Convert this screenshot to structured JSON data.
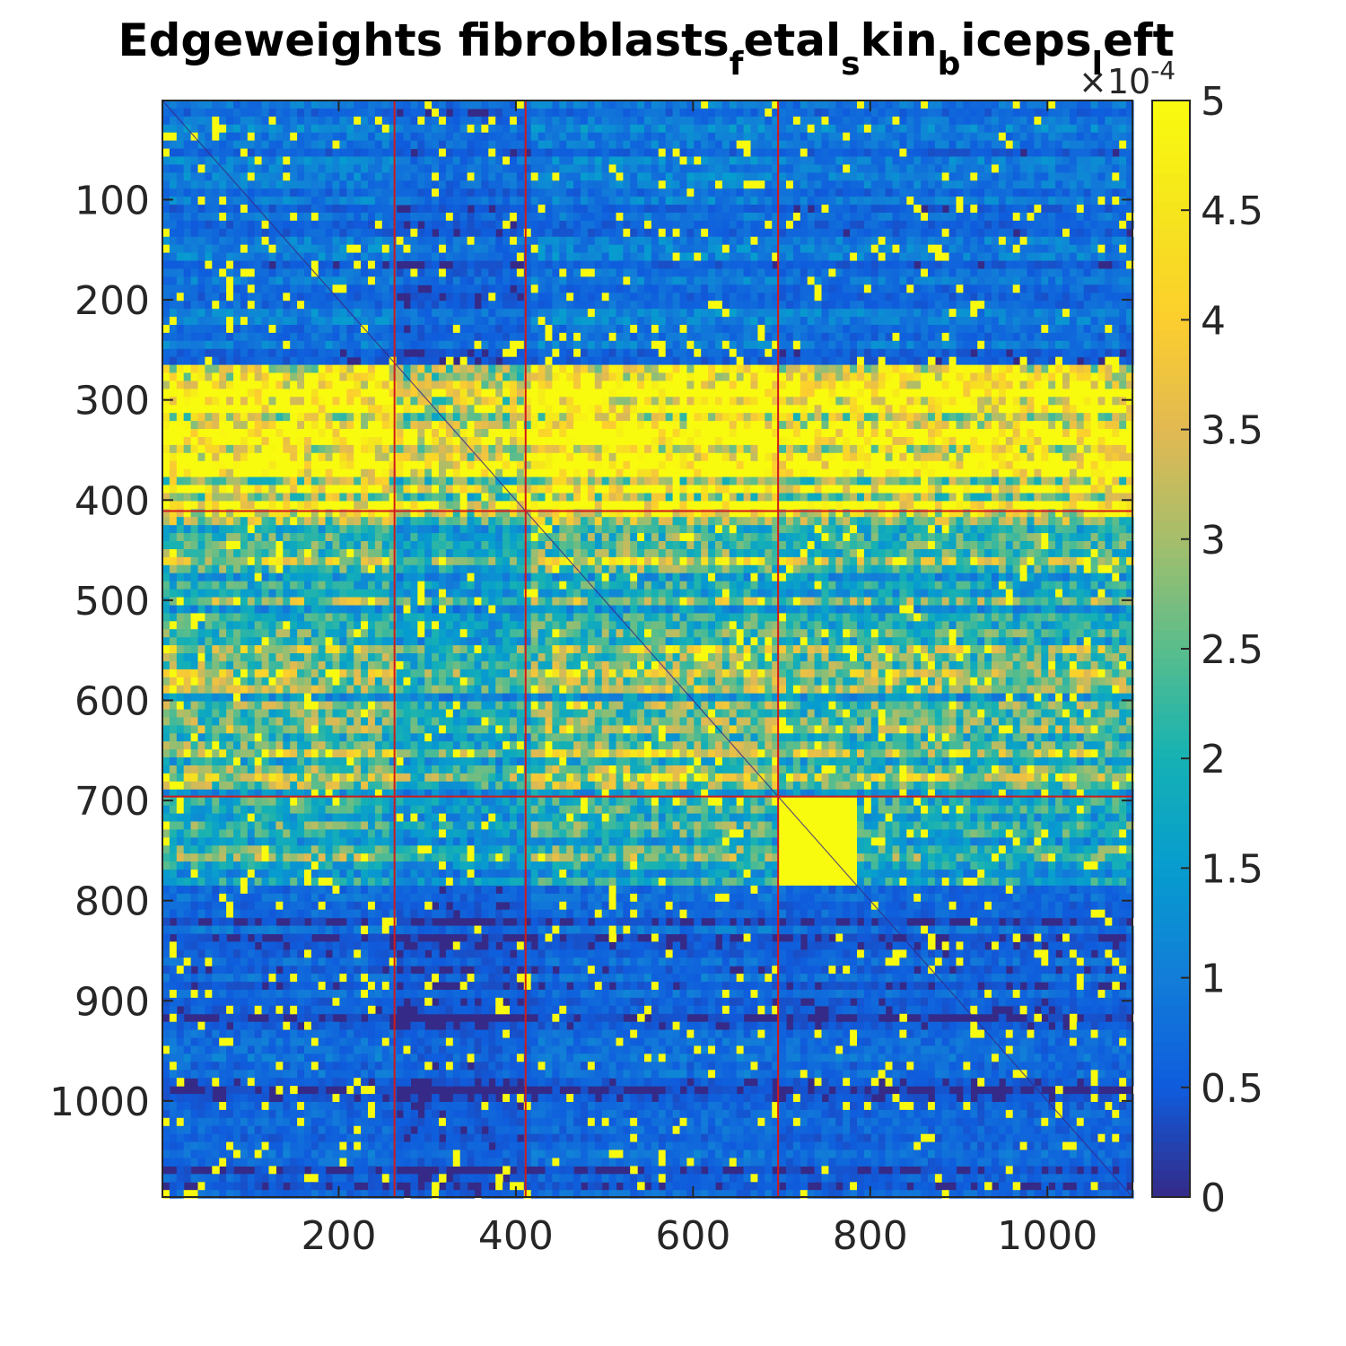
{
  "chart_data": {
    "type": "heatmap",
    "title": {
      "parts": [
        {
          "text": "Edgeweights fibroblasts",
          "sub": false
        },
        {
          "text": "f",
          "sub": true
        },
        {
          "text": "etal",
          "sub": false
        },
        {
          "text": "s",
          "sub": true
        },
        {
          "text": "kin",
          "sub": false
        },
        {
          "text": "b",
          "sub": true
        },
        {
          "text": "iceps",
          "sub": false
        },
        {
          "text": "l",
          "sub": true
        },
        {
          "text": "eft",
          "sub": false
        }
      ]
    },
    "matrix_size": 1096,
    "xlim": [
      1,
      1096
    ],
    "ylim": [
      1,
      1096
    ],
    "x_ticks": [
      200,
      400,
      600,
      800,
      1000
    ],
    "y_ticks": [
      100,
      200,
      300,
      400,
      500,
      600,
      700,
      800,
      900,
      1000
    ],
    "colorbar": {
      "colormap": "parula",
      "range": [
        0,
        5
      ],
      "ticks": [
        0,
        0.5,
        1,
        1.5,
        2,
        2.5,
        3,
        3.5,
        4,
        4.5,
        5
      ],
      "tick_labels": [
        "0",
        "0.5",
        "1",
        "1.5",
        "2",
        "2.5",
        "3",
        "3.5",
        "4",
        "4.5",
        "5"
      ],
      "exponent_label": "×10",
      "exponent_power": "-4"
    },
    "block_boundaries": [
      263,
      411,
      696
    ],
    "row_bands": [
      {
        "rows": [
          263,
          411
        ],
        "level": 4.6
      },
      {
        "rows": [
          411,
          696
        ],
        "level": 2.5
      },
      {
        "rows": [
          696,
          782
        ],
        "level": 1.8
      },
      {
        "rows": [
          782,
          1096
        ],
        "level": 0.6
      },
      {
        "rows": [
          1,
          263
        ],
        "level": 0.8
      }
    ],
    "bright_block": {
      "rows": [
        696,
        782
      ],
      "cols": [
        696,
        782
      ],
      "level": 5
    },
    "diagonal": true,
    "grid": false,
    "colors": {
      "low": "#352A87",
      "mid": "#0F7CE0",
      "high": "#F9FB0E",
      "boundary": "#D11A1A"
    }
  }
}
